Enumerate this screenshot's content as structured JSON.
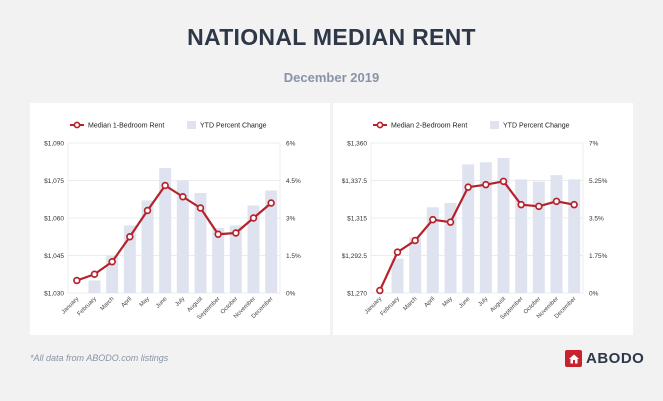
{
  "header": {
    "title": "NATIONAL MEDIAN RENT",
    "subtitle": "December 2019"
  },
  "footer": {
    "note": "*All data from ABODO.com listings",
    "logo_text": "ABODO"
  },
  "colors": {
    "line": "#b5222b",
    "bar": "#dfe3ef",
    "grid": "#e6e6e6",
    "title": "#2f3848",
    "subtitle": "#8893a6"
  },
  "chart_data": [
    {
      "type": "bar+line",
      "line_name": "Median 1-Bedroom Rent",
      "bar_name": "YTD Percent Change",
      "categories": [
        "January",
        "February",
        "March",
        "April",
        "May",
        "June",
        "July",
        "August",
        "September",
        "October",
        "November",
        "December"
      ],
      "line_values": [
        1035,
        1037.5,
        1042.5,
        1052.5,
        1063,
        1073,
        1068.5,
        1064,
        1053.5,
        1054,
        1060,
        1066
      ],
      "bar_values": [
        0,
        0.5,
        1.5,
        2.7,
        3.7,
        5.0,
        4.5,
        4.0,
        2.6,
        2.7,
        3.5,
        4.1
      ],
      "left_axis": {
        "min": 1030,
        "max": 1090,
        "ticks": [
          1030,
          1045,
          1060,
          1075,
          1090
        ],
        "tick_labels": [
          "$1,030",
          "$1,045",
          "$1,060",
          "$1,075",
          "$1,090"
        ]
      },
      "right_axis": {
        "min": 0,
        "max": 6,
        "ticks": [
          0,
          1.5,
          3,
          4.5,
          6
        ],
        "tick_labels": [
          "0%",
          "1.5%",
          "3%",
          "4.5%",
          "6%"
        ]
      }
    },
    {
      "type": "bar+line",
      "line_name": "Median 2-Bedroom Rent",
      "bar_name": "YTD Percent Change",
      "categories": [
        "January",
        "February",
        "March",
        "April",
        "May",
        "June",
        "July",
        "August",
        "September",
        "October",
        "November",
        "December"
      ],
      "line_values": [
        1271.5,
        1294.5,
        1301.5,
        1314,
        1312.5,
        1333.5,
        1335,
        1337,
        1323,
        1322,
        1325,
        1323
      ],
      "bar_values": [
        0,
        1.6,
        2.6,
        4.0,
        4.2,
        6.0,
        6.1,
        6.3,
        5.3,
        5.2,
        5.5,
        5.3
      ],
      "left_axis": {
        "min": 1270,
        "max": 1360,
        "ticks": [
          1270,
          1292.5,
          1315,
          1337.5,
          1360
        ],
        "tick_labels": [
          "$1,270",
          "$1,292.5",
          "$1,315",
          "$1,337.5",
          "$1,360"
        ]
      },
      "right_axis": {
        "min": 0,
        "max": 7,
        "ticks": [
          0,
          1.75,
          3.5,
          5.25,
          7
        ],
        "tick_labels": [
          "0%",
          "1.75%",
          "3.5%",
          "5.25%",
          "7%"
        ]
      }
    }
  ]
}
